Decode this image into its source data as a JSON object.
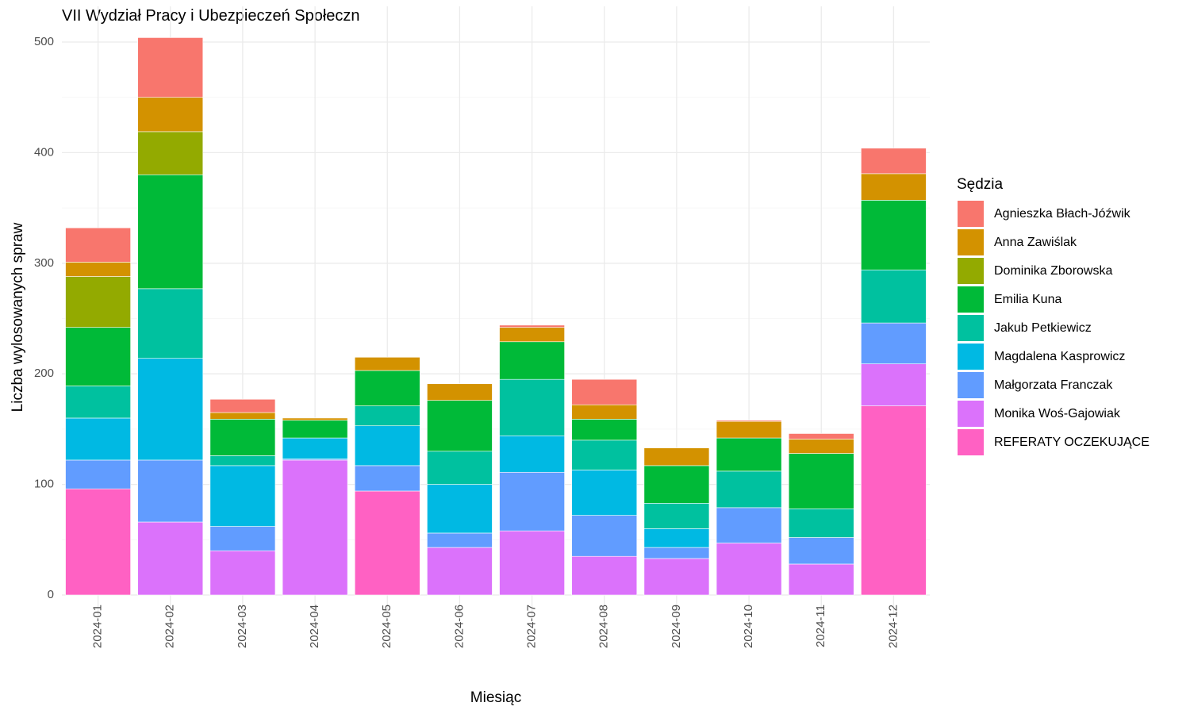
{
  "chart_data": {
    "type": "bar",
    "stacked": true,
    "title": "VII Wydział Pracy i Ubezpieczeń Społeczn",
    "xlabel": "Miesiąc",
    "ylabel": "Liczba wylosowanych spraw",
    "ylim": [
      0,
      510
    ],
    "yticks": [
      0,
      100,
      200,
      300,
      400,
      500
    ],
    "grid": true,
    "legend_title": "Sędzia",
    "legend_position": "right",
    "categories": [
      "2024-01",
      "2024-02",
      "2024-03",
      "2024-04",
      "2024-05",
      "2024-06",
      "2024-07",
      "2024-08",
      "2024-09",
      "2024-10",
      "2024-11",
      "2024-12"
    ],
    "series": [
      {
        "name": "Agnieszka Błach-Jóźwik",
        "color": "#F8766D",
        "values": [
          31,
          54,
          12,
          0,
          0,
          0,
          2,
          23,
          0,
          1,
          5,
          23
        ]
      },
      {
        "name": "Anna Zawiślak",
        "color": "#D39200",
        "values": [
          13,
          31,
          6,
          2,
          12,
          15,
          13,
          13,
          16,
          15,
          13,
          24
        ]
      },
      {
        "name": "Dominika Zborowska",
        "color": "#93AA00",
        "values": [
          46,
          39,
          0,
          0,
          0,
          0,
          0,
          0,
          0,
          0,
          0,
          0
        ]
      },
      {
        "name": "Emilia Kuna",
        "color": "#00BA38",
        "values": [
          53,
          103,
          33,
          16,
          32,
          46,
          34,
          19,
          34,
          30,
          50,
          63
        ]
      },
      {
        "name": "Jakub Petkiewicz",
        "color": "#00C19F",
        "values": [
          29,
          63,
          9,
          0,
          18,
          30,
          51,
          27,
          23,
          33,
          26,
          48
        ]
      },
      {
        "name": "Magdalena Kasprowicz",
        "color": "#00B9E3",
        "values": [
          38,
          92,
          55,
          19,
          36,
          44,
          33,
          41,
          17,
          0,
          0,
          0
        ]
      },
      {
        "name": "Małgorzata Franczak",
        "color": "#619CFF",
        "values": [
          26,
          56,
          22,
          1,
          23,
          13,
          53,
          37,
          10,
          32,
          24,
          37
        ]
      },
      {
        "name": "Monika Woś-Gajowiak",
        "color": "#DB72FB",
        "values": [
          0,
          66,
          40,
          122,
          0,
          43,
          58,
          35,
          33,
          47,
          28,
          38
        ]
      },
      {
        "name": "REFERATY OCZEKUJĄCE",
        "color": "#FF61C3",
        "values": [
          96,
          0,
          0,
          0,
          94,
          0,
          0,
          0,
          0,
          0,
          0,
          171
        ]
      }
    ]
  }
}
